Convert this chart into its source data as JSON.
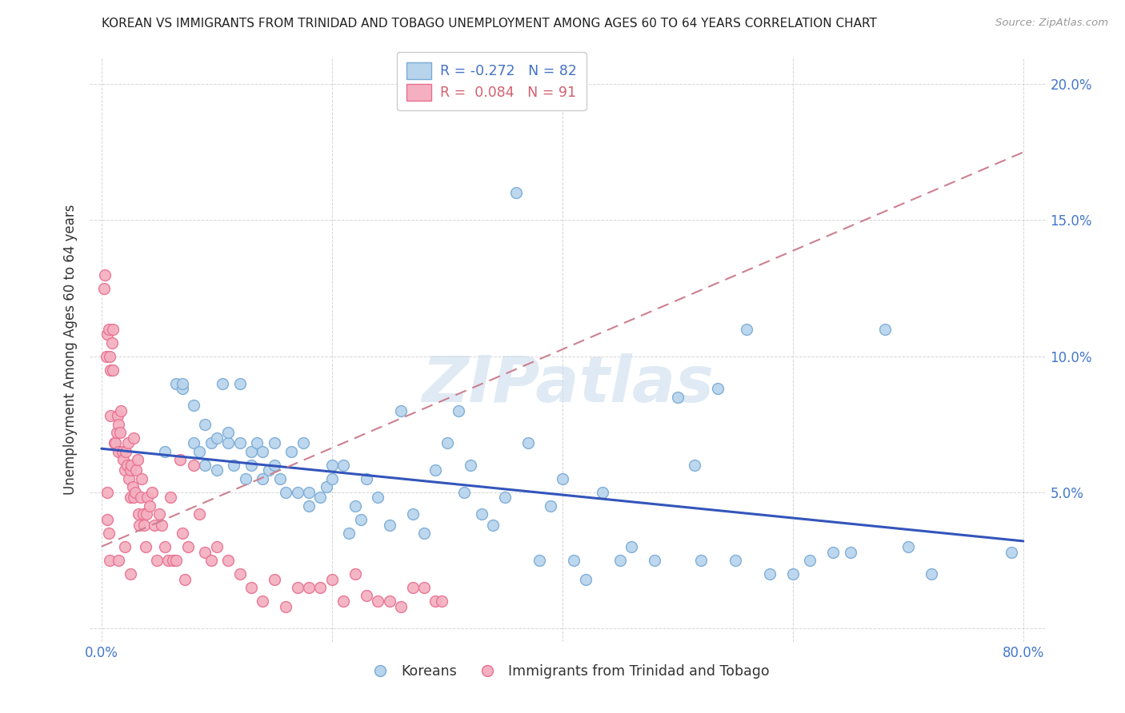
{
  "title": "KOREAN VS IMMIGRANTS FROM TRINIDAD AND TOBAGO UNEMPLOYMENT AMONG AGES 60 TO 64 YEARS CORRELATION CHART",
  "source": "Source: ZipAtlas.com",
  "ylabel": "Unemployment Among Ages 60 to 64 years",
  "xlim": [
    -0.01,
    0.82
  ],
  "ylim": [
    -0.005,
    0.21
  ],
  "xticks": [
    0.0,
    0.2,
    0.4,
    0.6,
    0.8
  ],
  "xticklabels": [
    "0.0%",
    "",
    "",
    "",
    "80.0%"
  ],
  "ytick_positions": [
    0.0,
    0.05,
    0.1,
    0.15,
    0.2
  ],
  "ytick_labels": [
    "",
    "5.0%",
    "10.0%",
    "15.0%",
    "20.0%"
  ],
  "legend_korean": "R = -0.272   N = 82",
  "legend_trini": "R =  0.084   N = 91",
  "korean_color": "#b8d4ed",
  "korean_edge": "#7aaad4",
  "trini_color": "#f4b0c0",
  "trini_edge": "#e87090",
  "korean_line_color": "#3355bb",
  "trini_line_color": "#cc8090",
  "watermark": "ZIPatlas",
  "watermark_color": "#ccdded",
  "korean_R": -0.272,
  "trini_R": 0.084,
  "korean_trend_x0": 0.0,
  "korean_trend_y0": 0.066,
  "korean_trend_x1": 0.8,
  "korean_trend_y1": 0.032,
  "trini_trend_x0": 0.0,
  "trini_trend_y0": 0.03,
  "trini_trend_x1": 0.8,
  "trini_trend_y1": 0.175,
  "korean_points_x": [
    0.055,
    0.065,
    0.07,
    0.07,
    0.08,
    0.08,
    0.085,
    0.09,
    0.09,
    0.095,
    0.1,
    0.1,
    0.105,
    0.11,
    0.11,
    0.115,
    0.12,
    0.12,
    0.125,
    0.13,
    0.13,
    0.135,
    0.14,
    0.14,
    0.145,
    0.15,
    0.15,
    0.155,
    0.16,
    0.165,
    0.17,
    0.175,
    0.18,
    0.18,
    0.19,
    0.195,
    0.2,
    0.2,
    0.21,
    0.215,
    0.22,
    0.225,
    0.23,
    0.24,
    0.25,
    0.26,
    0.27,
    0.28,
    0.29,
    0.3,
    0.31,
    0.315,
    0.32,
    0.33,
    0.34,
    0.35,
    0.36,
    0.37,
    0.38,
    0.39,
    0.4,
    0.41,
    0.42,
    0.435,
    0.45,
    0.46,
    0.48,
    0.5,
    0.515,
    0.52,
    0.535,
    0.55,
    0.56,
    0.58,
    0.6,
    0.615,
    0.635,
    0.65,
    0.68,
    0.7,
    0.72,
    0.79
  ],
  "korean_points_y": [
    0.065,
    0.09,
    0.088,
    0.09,
    0.068,
    0.082,
    0.065,
    0.06,
    0.075,
    0.068,
    0.058,
    0.07,
    0.09,
    0.068,
    0.072,
    0.06,
    0.068,
    0.09,
    0.055,
    0.06,
    0.065,
    0.068,
    0.055,
    0.065,
    0.058,
    0.06,
    0.068,
    0.055,
    0.05,
    0.065,
    0.05,
    0.068,
    0.05,
    0.045,
    0.048,
    0.052,
    0.055,
    0.06,
    0.06,
    0.035,
    0.045,
    0.04,
    0.055,
    0.048,
    0.038,
    0.08,
    0.042,
    0.035,
    0.058,
    0.068,
    0.08,
    0.05,
    0.06,
    0.042,
    0.038,
    0.048,
    0.16,
    0.068,
    0.025,
    0.045,
    0.055,
    0.025,
    0.018,
    0.05,
    0.025,
    0.03,
    0.025,
    0.085,
    0.06,
    0.025,
    0.088,
    0.025,
    0.11,
    0.02,
    0.02,
    0.025,
    0.028,
    0.028,
    0.11,
    0.03,
    0.02,
    0.028
  ],
  "trini_points_x": [
    0.002,
    0.003,
    0.004,
    0.005,
    0.006,
    0.007,
    0.008,
    0.008,
    0.009,
    0.01,
    0.01,
    0.011,
    0.012,
    0.013,
    0.014,
    0.015,
    0.015,
    0.016,
    0.017,
    0.018,
    0.019,
    0.02,
    0.021,
    0.022,
    0.023,
    0.024,
    0.025,
    0.025,
    0.026,
    0.027,
    0.028,
    0.028,
    0.029,
    0.03,
    0.031,
    0.032,
    0.033,
    0.034,
    0.035,
    0.036,
    0.037,
    0.038,
    0.039,
    0.04,
    0.042,
    0.044,
    0.046,
    0.048,
    0.05,
    0.052,
    0.055,
    0.058,
    0.06,
    0.062,
    0.065,
    0.068,
    0.07,
    0.072,
    0.075,
    0.08,
    0.085,
    0.09,
    0.095,
    0.1,
    0.11,
    0.12,
    0.13,
    0.14,
    0.15,
    0.16,
    0.17,
    0.18,
    0.19,
    0.2,
    0.21,
    0.22,
    0.23,
    0.24,
    0.25,
    0.26,
    0.27,
    0.28,
    0.29,
    0.295,
    0.005,
    0.005,
    0.006,
    0.007,
    0.015,
    0.02,
    0.025
  ],
  "trini_points_y": [
    0.125,
    0.13,
    0.1,
    0.108,
    0.11,
    0.1,
    0.095,
    0.078,
    0.105,
    0.11,
    0.095,
    0.068,
    0.068,
    0.072,
    0.078,
    0.075,
    0.065,
    0.072,
    0.08,
    0.065,
    0.062,
    0.058,
    0.065,
    0.06,
    0.068,
    0.055,
    0.058,
    0.048,
    0.06,
    0.052,
    0.048,
    0.07,
    0.05,
    0.058,
    0.062,
    0.042,
    0.038,
    0.048,
    0.055,
    0.042,
    0.038,
    0.03,
    0.042,
    0.048,
    0.045,
    0.05,
    0.038,
    0.025,
    0.042,
    0.038,
    0.03,
    0.025,
    0.048,
    0.025,
    0.025,
    0.062,
    0.035,
    0.018,
    0.03,
    0.06,
    0.042,
    0.028,
    0.025,
    0.03,
    0.025,
    0.02,
    0.015,
    0.01,
    0.018,
    0.008,
    0.015,
    0.015,
    0.015,
    0.018,
    0.01,
    0.02,
    0.012,
    0.01,
    0.01,
    0.008,
    0.015,
    0.015,
    0.01,
    0.01,
    0.05,
    0.04,
    0.035,
    0.025,
    0.025,
    0.03,
    0.02
  ]
}
